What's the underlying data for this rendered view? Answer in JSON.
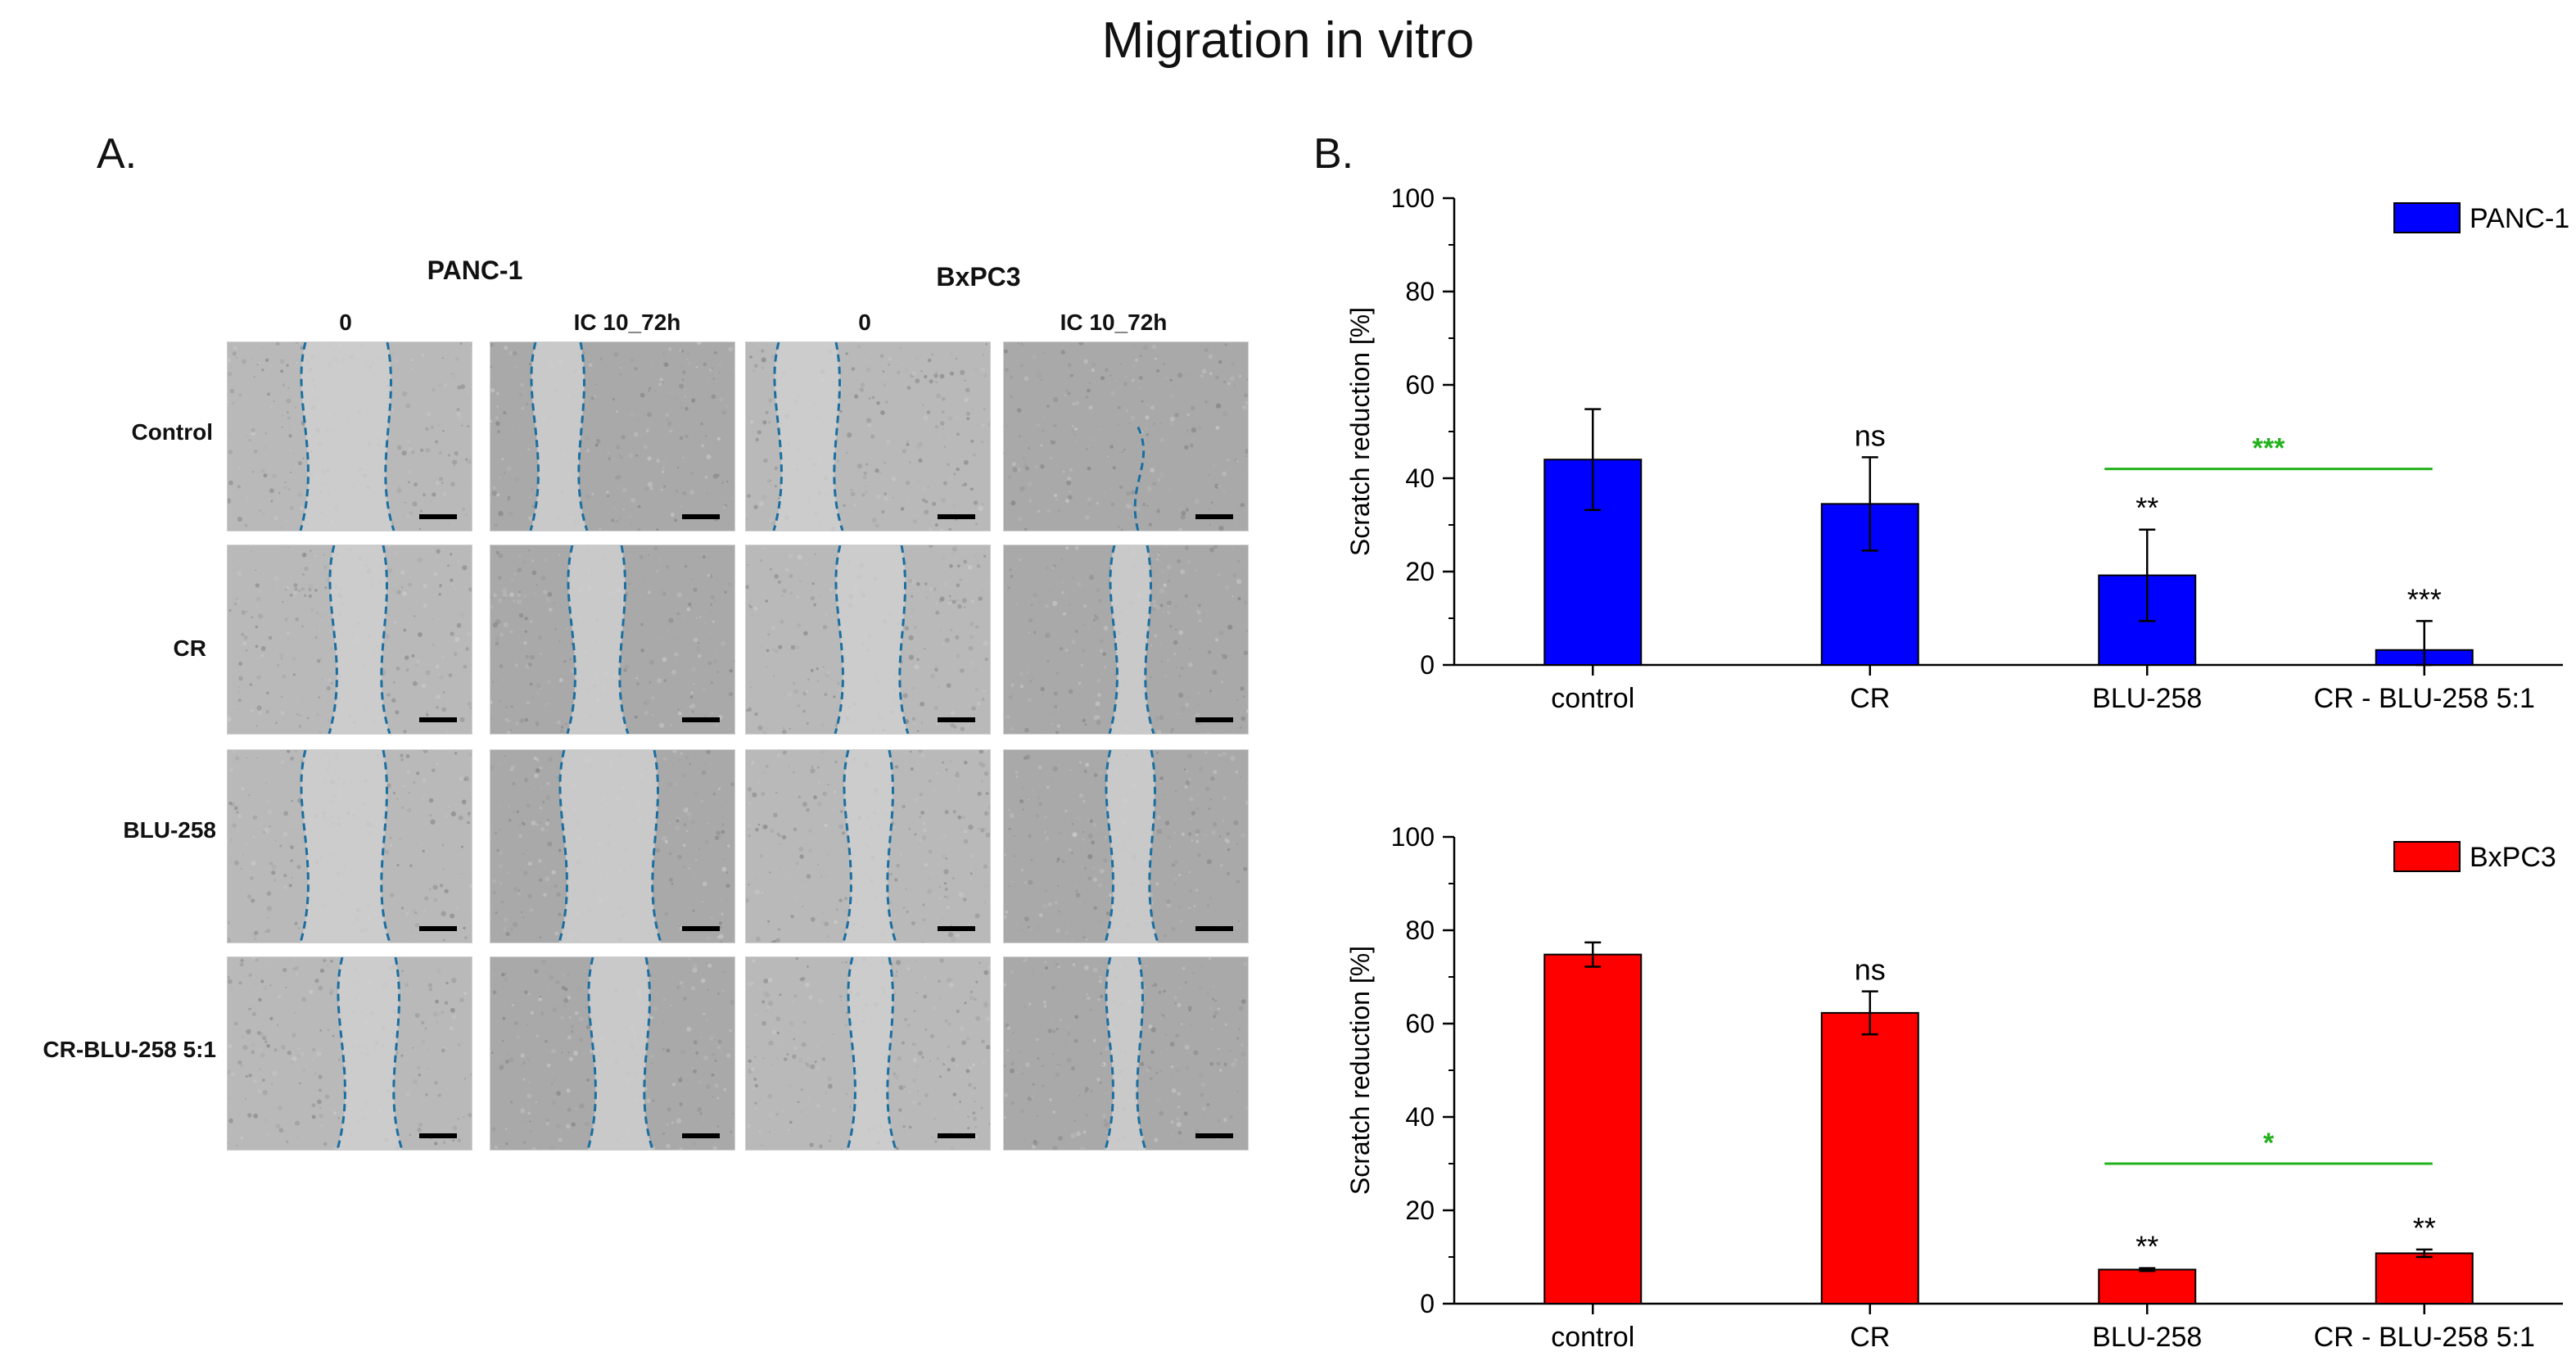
{
  "figure": {
    "title": "Migration in vitro",
    "panel_a_label": "A.",
    "panel_b_label": "B."
  },
  "panel_a": {
    "cell_lines": [
      "PANC-1",
      "BxPC3"
    ],
    "timepoints": [
      "0",
      "IC 10_72h",
      "0",
      "IC 10_72h"
    ],
    "rows": [
      "Control",
      "CR",
      "BLU-258",
      "CR-BLU-258 5:1"
    ]
  },
  "chart_data": [
    {
      "type": "bar",
      "title": "",
      "xlabel": "",
      "ylabel": "Scratch reduction [%]",
      "ylim": [
        0,
        100
      ],
      "yticks": [
        0,
        20,
        40,
        60,
        80,
        100
      ],
      "categories": [
        "control",
        "CR",
        "BLU-258",
        "CR - BLU-258 5:1"
      ],
      "series": [
        {
          "name": "PANC-1",
          "color": "#0000ff",
          "values": [
            44,
            34.5,
            19.2,
            3.2
          ],
          "errors": [
            10.8,
            10,
            9.8,
            6.2
          ]
        }
      ],
      "annotations": [
        "",
        "ns",
        "**",
        "***"
      ],
      "comparison": {
        "from": 2,
        "to": 3,
        "label": "***",
        "color": "#22b11c",
        "y": 42
      },
      "legend": "top-right"
    },
    {
      "type": "bar",
      "title": "",
      "xlabel": "",
      "ylabel": "Scratch reduction [%]",
      "ylim": [
        0,
        100
      ],
      "yticks": [
        0,
        20,
        40,
        60,
        80,
        100
      ],
      "categories": [
        "control",
        "CR",
        "BLU-258",
        "CR - BLU-258 5:1"
      ],
      "series": [
        {
          "name": "BxPC3",
          "color": "#ff0000",
          "values": [
            74.8,
            62.3,
            7.3,
            10.8
          ],
          "errors": [
            2.6,
            4.6,
            0.3,
            0.8
          ]
        }
      ],
      "annotations": [
        "",
        "ns",
        "**",
        "**"
      ],
      "comparison": {
        "from": 2,
        "to": 3,
        "label": "*",
        "color": "#22b11c",
        "y": 30
      },
      "legend": "top-right"
    }
  ]
}
